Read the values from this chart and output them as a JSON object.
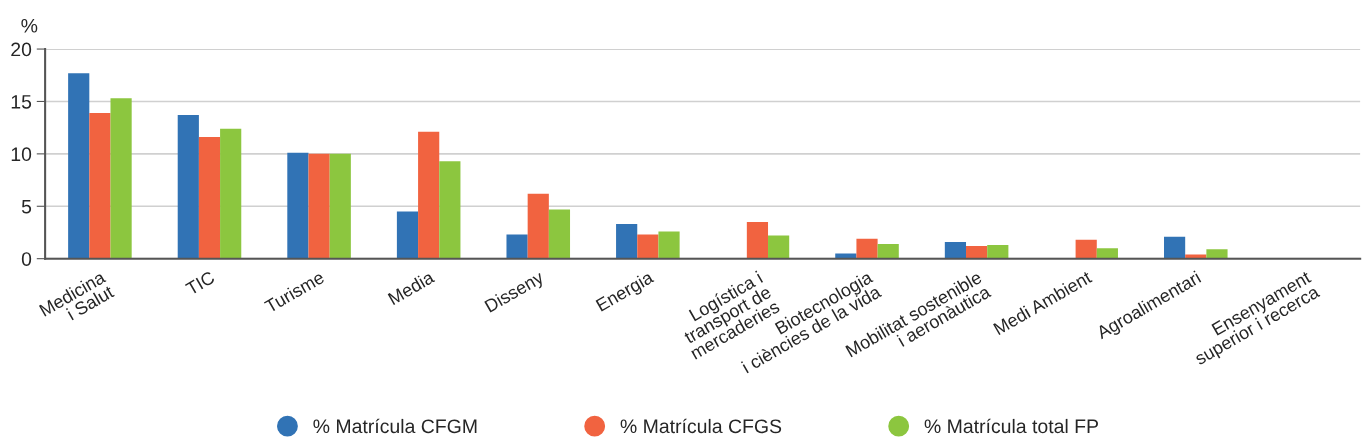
{
  "chart_data": {
    "type": "bar",
    "ylabel": "%",
    "categories": [
      "Medicina\ni Salut",
      "TIC",
      "Turisme",
      "Media",
      "Disseny",
      "Energia",
      "Logística i\ntransport de\nmercaderies",
      "Biotecnologia\ni ciències de la vida",
      "Mobilitat sostenible\ni aeronàutica",
      "Medi Ambient",
      "Agroalimentari",
      "Ensenyament\nsuperior i recerca"
    ],
    "series": [
      {
        "name": "% Matrícula CFGM",
        "color": "#3173b5",
        "values": [
          17.7,
          13.7,
          10.1,
          4.5,
          2.3,
          3.3,
          null,
          0.5,
          1.6,
          null,
          2.1,
          null
        ]
      },
      {
        "name": "% Matrícula CFGS",
        "color": "#f16340",
        "values": [
          13.9,
          11.6,
          10.0,
          12.1,
          6.2,
          2.3,
          3.5,
          1.9,
          1.2,
          1.8,
          0.4,
          null
        ]
      },
      {
        "name": "% Matrícula total FP",
        "color": "#8cc63f",
        "values": [
          15.3,
          12.4,
          10.0,
          9.3,
          4.7,
          2.6,
          2.2,
          1.4,
          1.3,
          1.0,
          0.9,
          null
        ]
      }
    ],
    "ylim": [
      0,
      20
    ],
    "yticks": [
      0,
      5,
      10,
      15,
      20
    ],
    "grid": "y",
    "legend": "bottom",
    "marker": "circle"
  }
}
